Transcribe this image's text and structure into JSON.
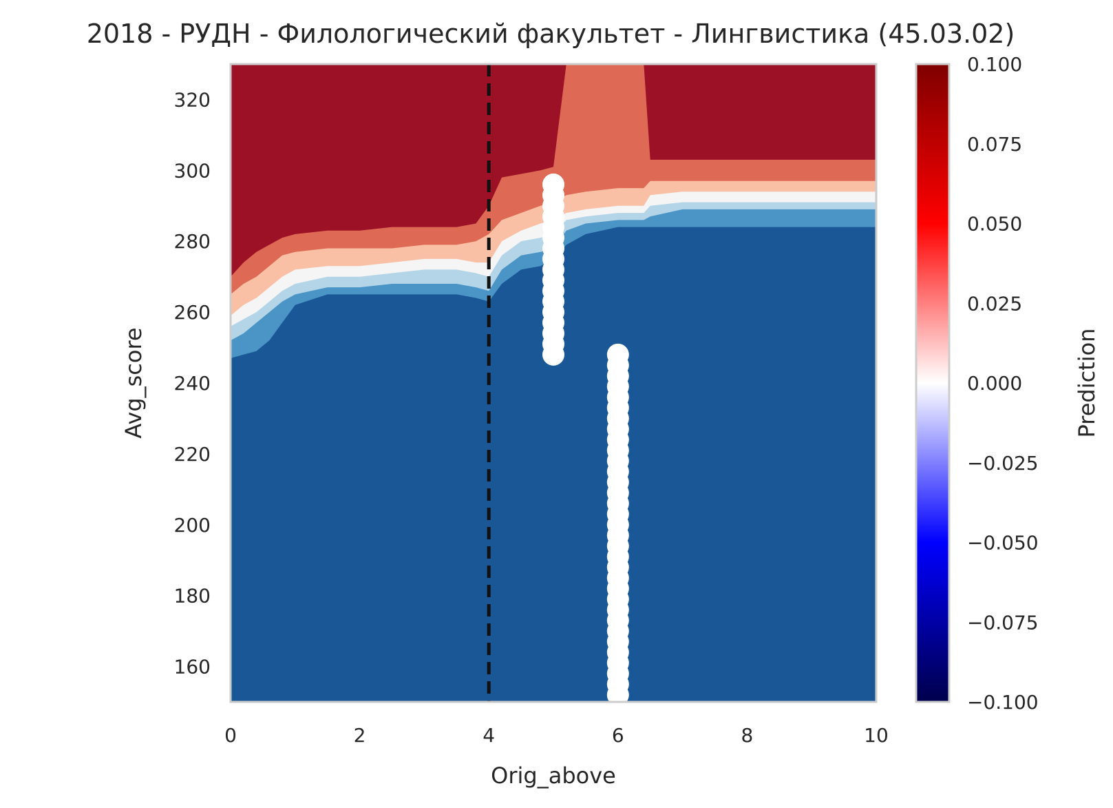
{
  "chart_data": {
    "type": "heatmap",
    "title": "2018 - РУДН - Филологический факультет - Лингвистика (45.03.02)",
    "xlabel": "Orig_above",
    "ylabel": "Avg_score",
    "xlim": [
      0,
      10
    ],
    "ylim": [
      150,
      330
    ],
    "x_ticks": [
      "0",
      "2",
      "4",
      "6",
      "8",
      "10"
    ],
    "x_tick_values": [
      0,
      2,
      4,
      6,
      8,
      10
    ],
    "y_ticks": [
      "160",
      "180",
      "200",
      "220",
      "240",
      "260",
      "280",
      "300",
      "320"
    ],
    "y_tick_values": [
      160,
      180,
      200,
      220,
      240,
      260,
      280,
      300,
      320
    ],
    "grid": false,
    "colorbar": {
      "label": "Prediction",
      "colormap": "seismic",
      "range": [
        -0.1,
        0.1
      ],
      "ticks": [
        "−0.100",
        "−0.075",
        "−0.050",
        "−0.025",
        "0.000",
        "0.025",
        "0.050",
        "0.075",
        "0.100"
      ],
      "tick_values": [
        -0.1,
        -0.075,
        -0.05,
        -0.025,
        0,
        0.025,
        0.05,
        0.075,
        0.1
      ]
    },
    "contour_levels": {
      "colors": [
        "#1a5796",
        "#4a95c6",
        "#b4d5e8",
        "#f5f5f5",
        "#f9c0a6",
        "#de6a55",
        "#9d1127"
      ],
      "boundaries_orig_above": [
        0,
        0.2,
        0.4,
        0.6,
        0.8,
        1.0,
        1.5,
        2.0,
        2.5,
        3.0,
        3.5,
        3.8,
        4.0,
        4.2,
        4.5,
        4.8,
        5.0,
        5.2,
        5.5,
        6.0,
        6.4,
        6.5,
        7.0,
        8.0,
        9.0,
        10.0
      ],
      "boundaries_avg_score": [
        [
          247,
          252,
          256,
          259,
          265,
          270
        ],
        [
          248,
          254,
          258,
          262,
          268,
          274
        ],
        [
          249,
          257,
          260,
          264,
          270,
          277
        ],
        [
          252,
          260,
          263,
          267,
          273,
          279
        ],
        [
          257,
          263,
          266,
          270,
          276,
          281
        ],
        [
          262,
          265,
          268,
          272,
          277,
          282
        ],
        [
          265,
          267,
          270,
          273,
          278,
          283
        ],
        [
          265,
          267,
          270,
          273,
          278,
          283
        ],
        [
          265,
          268,
          271,
          274,
          278,
          284
        ],
        [
          265,
          268,
          272,
          275,
          279,
          284
        ],
        [
          265,
          268,
          272,
          275,
          279,
          284
        ],
        [
          264,
          267,
          271,
          274,
          280,
          285
        ],
        [
          263,
          266,
          270,
          274,
          282,
          290
        ],
        [
          268,
          272,
          276,
          280,
          286,
          298
        ],
        [
          272,
          276,
          280,
          283,
          288,
          299
        ],
        [
          273,
          277,
          281,
          285,
          290,
          300
        ],
        [
          275,
          278,
          282,
          286,
          291,
          301
        ],
        [
          279,
          283,
          286,
          288,
          293,
          330
        ],
        [
          282,
          285,
          287,
          289,
          294,
          330
        ],
        [
          284,
          286,
          288,
          290,
          295,
          330
        ],
        [
          284,
          286,
          288,
          290,
          295,
          330
        ],
        [
          284,
          287,
          290,
          293,
          297,
          303
        ],
        [
          284,
          289,
          291,
          294,
          297,
          303
        ],
        [
          284,
          289,
          291,
          294,
          297,
          303
        ],
        [
          284,
          289,
          291,
          294,
          297,
          303
        ],
        [
          284,
          289,
          291,
          294,
          297,
          303
        ]
      ]
    },
    "reference_line": {
      "x": 4,
      "style": "dashed",
      "color": "#111111"
    },
    "points": {
      "color": "#ffffff",
      "x5": {
        "x": 5,
        "y_min": 248,
        "y_max": 296
      },
      "x6": {
        "x": 6,
        "y_min": 152,
        "y_max": 248
      }
    }
  }
}
